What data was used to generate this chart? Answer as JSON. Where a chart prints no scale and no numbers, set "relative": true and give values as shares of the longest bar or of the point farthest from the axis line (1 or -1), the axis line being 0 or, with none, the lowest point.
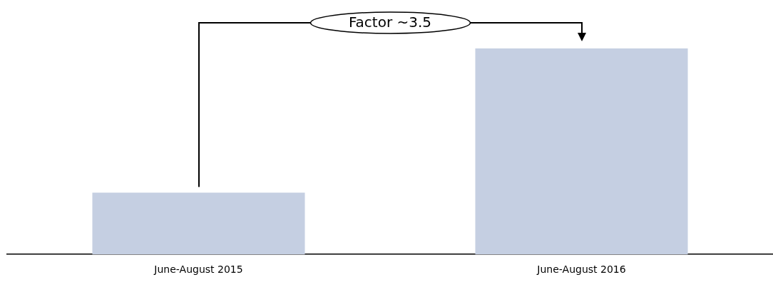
{
  "chart_data": {
    "type": "bar",
    "categories": [
      "June-August 2015",
      "June-August 2016"
    ],
    "values": [
      0.3,
      1
    ],
    "color": "#c5cfe2",
    "relative": true,
    "grid": false,
    "legend": false,
    "annotations": [
      "Factor ~3.5"
    ]
  }
}
